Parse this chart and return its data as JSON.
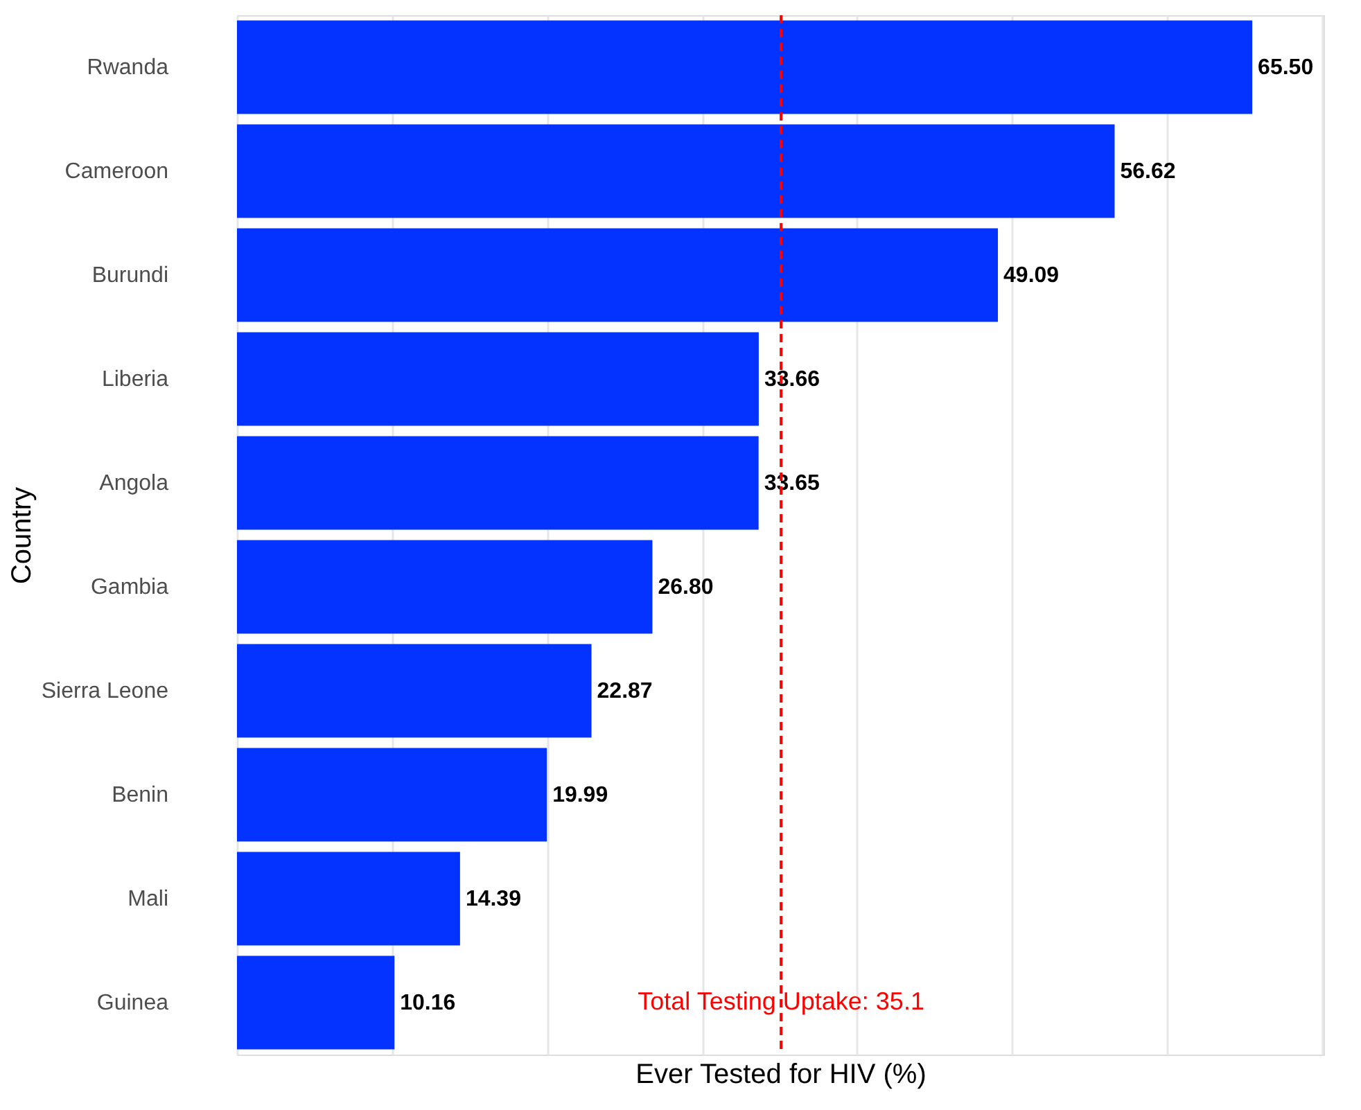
{
  "chart_data": {
    "type": "bar",
    "orientation": "horizontal",
    "xlabel": "Ever Tested for HIV (%)",
    "ylabel": "Country",
    "categories": [
      "Rwanda",
      "Cameroon",
      "Burundi",
      "Liberia",
      "Angola",
      "Gambia",
      "Sierra Leone",
      "Benin",
      "Mali",
      "Guinea"
    ],
    "values": [
      65.5,
      56.62,
      49.09,
      33.66,
      33.65,
      26.8,
      22.87,
      19.99,
      14.39,
      10.16
    ],
    "value_labels": [
      "65.50",
      "56.62",
      "49.09",
      "33.66",
      "33.65",
      "26.80",
      "22.87",
      "19.99",
      "14.39",
      "10.16"
    ],
    "color": "#0433ff",
    "xlim": [
      0,
      70.1
    ],
    "xticks": [
      {
        "value": 0,
        "label": null
      },
      {
        "value": 10,
        "label": null
      },
      {
        "value": 20,
        "label": null
      },
      {
        "value": 30,
        "label": null
      },
      {
        "value": 40,
        "label": null
      },
      {
        "value": 50,
        "label": null
      },
      {
        "value": 60,
        "label": null
      },
      {
        "value": 70,
        "label": null
      }
    ],
    "tick_labels": "y",
    "grid": "x",
    "ref_lines": [
      {
        "axis": "x",
        "value": 35.1,
        "label": "Total Testing Uptake: 35.1",
        "color": "#ff0000",
        "line_style": "dashed"
      }
    ]
  }
}
